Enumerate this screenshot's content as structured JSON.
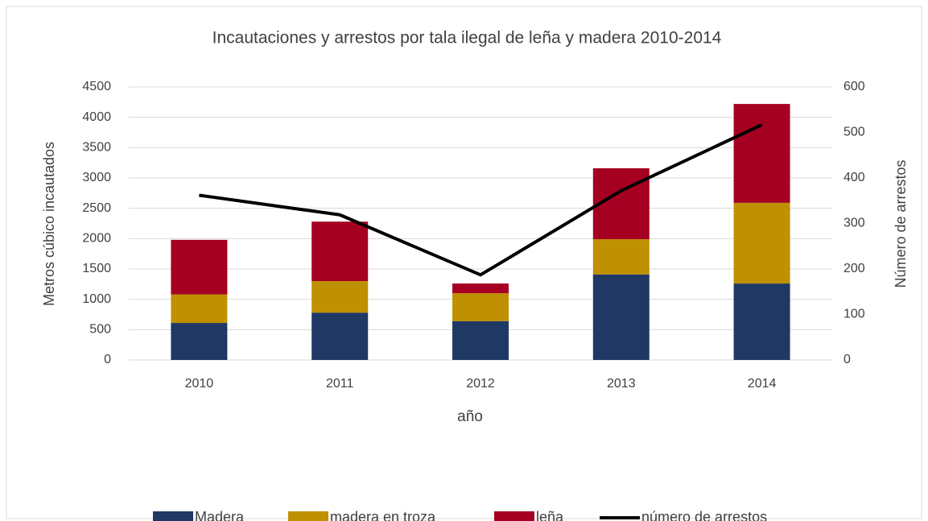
{
  "chart_data": {
    "type": "bar",
    "stacked": true,
    "title": "Incautaciones y arrestos por tala ilegal de leña y madera 2010-2014",
    "x_label": "año",
    "y_label": "Metros cúbico incautados",
    "y2_label": "Número de arrestos",
    "categories": [
      "2010",
      "2011",
      "2012",
      "2013",
      "2014"
    ],
    "series": [
      {
        "name": "Madera",
        "color": "#203864",
        "values": [
          610,
          780,
          640,
          1410,
          1260
        ]
      },
      {
        "name": "madera en troza",
        "color": "#bf9000",
        "values": [
          470,
          520,
          460,
          580,
          1330
        ]
      },
      {
        "name": "leña",
        "color": "#a50021",
        "values": [
          900,
          980,
          160,
          1170,
          1630
        ]
      },
      {
        "name": "número de arrestos",
        "color": "#000000",
        "type": "line",
        "axis": "y2",
        "values": [
          362,
          319,
          187,
          372,
          517
        ]
      }
    ],
    "ylim": [
      0,
      4500
    ],
    "yticks": [
      0,
      500,
      1000,
      1500,
      2000,
      2500,
      3000,
      3500,
      4000,
      4500
    ],
    "y2lim": [
      0,
      600
    ],
    "y2ticks": [
      0,
      100,
      200,
      300,
      400,
      500,
      600
    ],
    "grid": true,
    "legend": "bottom"
  }
}
